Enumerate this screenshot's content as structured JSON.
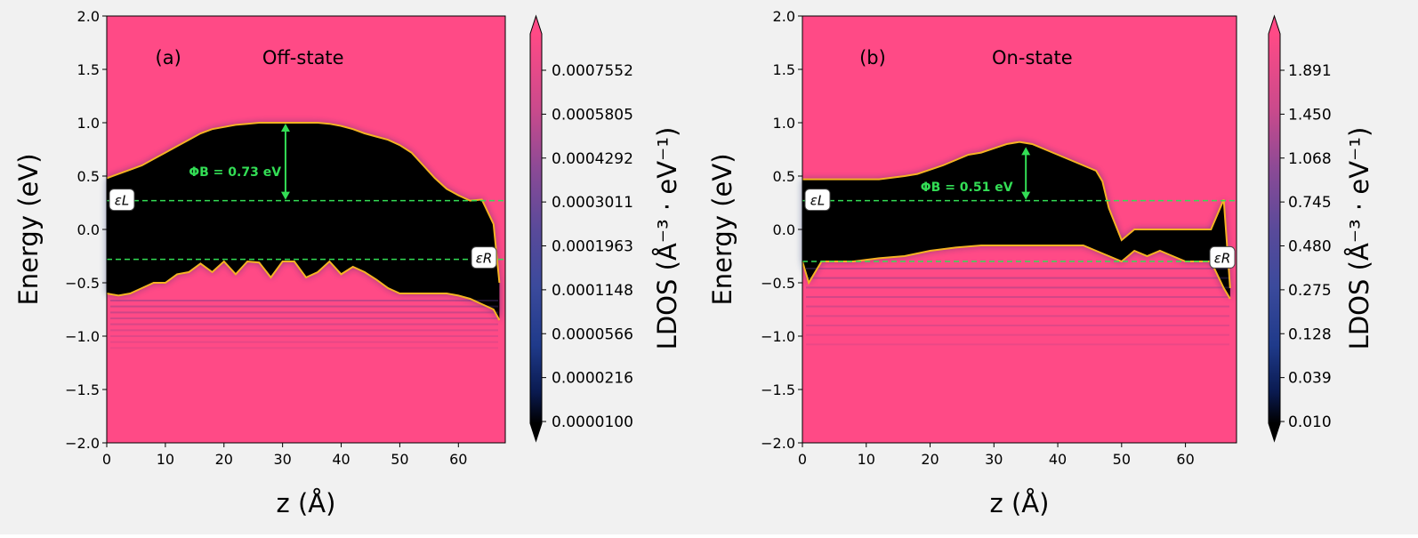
{
  "chart_data": [
    {
      "type": "heatmap",
      "panel_label": "(a)",
      "title": "Off-state",
      "xlabel": "z (Å)",
      "ylabel": "Energy (eV)",
      "xlim": [
        0,
        68
      ],
      "ylim": [
        -2.0,
        2.0
      ],
      "x_ticks": [
        "0",
        "10",
        "20",
        "30",
        "40",
        "50",
        "60"
      ],
      "y_ticks": [
        "2.0",
        "1.5",
        "1.0",
        "0.5",
        "0.0",
        "−0.5",
        "−1.0",
        "−1.5",
        "−2.0"
      ],
      "colorbar": {
        "label": "LDOS (Å⁻³ · eV⁻¹)",
        "scale": "log",
        "ticks": [
          "0.0007552",
          "0.0005805",
          "0.0004292",
          "0.0003011",
          "0.0001963",
          "0.0001148",
          "0.0000566",
          "0.0000216",
          "0.0000100"
        ]
      },
      "fermi_levels": {
        "epsilon_L": 0.27,
        "epsilon_R": -0.28
      },
      "epsilon_L_label": "εL",
      "epsilon_R_label": "εR",
      "barrier_annotation": "ΦB = 0.73 eV",
      "barrier_eV": 0.73,
      "conduction_band_edge": {
        "z": [
          0,
          2,
          4,
          6,
          8,
          10,
          12,
          14,
          16,
          18,
          20,
          22,
          24,
          26,
          28,
          30,
          32,
          34,
          36,
          38,
          40,
          42,
          44,
          46,
          48,
          50,
          52,
          54,
          56,
          58,
          60,
          62,
          64,
          66,
          67
        ],
        "E": [
          0.48,
          0.52,
          0.56,
          0.6,
          0.66,
          0.72,
          0.78,
          0.84,
          0.9,
          0.94,
          0.96,
          0.98,
          0.99,
          1.0,
          1.0,
          1.0,
          1.0,
          1.0,
          1.0,
          0.99,
          0.97,
          0.94,
          0.9,
          0.87,
          0.84,
          0.79,
          0.72,
          0.6,
          0.48,
          0.38,
          0.32,
          0.27,
          0.28,
          0.05,
          -0.5
        ]
      },
      "valence_band_edge": {
        "z": [
          0,
          2,
          4,
          6,
          8,
          10,
          12,
          14,
          16,
          18,
          20,
          22,
          24,
          26,
          28,
          30,
          32,
          34,
          36,
          38,
          40,
          42,
          44,
          46,
          48,
          50,
          52,
          54,
          56,
          58,
          60,
          62,
          64,
          66,
          67
        ],
        "E": [
          -0.6,
          -0.62,
          -0.6,
          -0.55,
          -0.5,
          -0.5,
          -0.42,
          -0.4,
          -0.32,
          -0.4,
          -0.3,
          -0.42,
          -0.3,
          -0.31,
          -0.45,
          -0.3,
          -0.3,
          -0.45,
          -0.4,
          -0.3,
          -0.42,
          -0.35,
          -0.4,
          -0.47,
          -0.55,
          -0.6,
          -0.6,
          -0.6,
          -0.6,
          -0.6,
          -0.62,
          -0.65,
          -0.7,
          -0.75,
          -0.85
        ]
      }
    },
    {
      "type": "heatmap",
      "panel_label": "(b)",
      "title": "On-state",
      "xlabel": "z (Å)",
      "ylabel": "Energy (eV)",
      "xlim": [
        0,
        68
      ],
      "ylim": [
        -2.0,
        2.0
      ],
      "x_ticks": [
        "0",
        "10",
        "20",
        "30",
        "40",
        "50",
        "60"
      ],
      "y_ticks": [
        "2.0",
        "1.5",
        "1.0",
        "0.5",
        "0.0",
        "−0.5",
        "−1.0",
        "−1.5",
        "−2.0"
      ],
      "colorbar": {
        "label": "LDOS (Å⁻³ · eV⁻¹)",
        "scale": "log",
        "ticks": [
          "1.891",
          "1.450",
          "1.068",
          "0.745",
          "0.480",
          "0.275",
          "0.128",
          "0.039",
          "0.010"
        ]
      },
      "fermi_levels": {
        "epsilon_L": 0.27,
        "epsilon_R": -0.3
      },
      "epsilon_L_label": "εL",
      "epsilon_R_label": "εR",
      "barrier_annotation": "ΦB = 0.51 eV",
      "barrier_eV": 0.51,
      "conduction_band_edge": {
        "z": [
          0,
          4,
          8,
          12,
          16,
          18,
          20,
          22,
          24,
          26,
          28,
          30,
          32,
          34,
          36,
          38,
          40,
          42,
          44,
          46,
          47,
          48,
          49,
          50,
          52,
          54,
          56,
          58,
          60,
          62,
          64,
          66,
          67
        ],
        "E": [
          0.47,
          0.47,
          0.47,
          0.47,
          0.5,
          0.52,
          0.56,
          0.6,
          0.65,
          0.7,
          0.72,
          0.76,
          0.8,
          0.82,
          0.8,
          0.75,
          0.7,
          0.65,
          0.6,
          0.55,
          0.45,
          0.2,
          0.05,
          -0.1,
          0.0,
          0.0,
          0.0,
          0.0,
          0.0,
          0.0,
          0.0,
          0.28,
          -0.55
        ]
      },
      "valence_band_edge": {
        "z": [
          0,
          1,
          3,
          5,
          8,
          12,
          16,
          20,
          24,
          28,
          32,
          36,
          40,
          44,
          46,
          48,
          50,
          52,
          54,
          56,
          58,
          60,
          62,
          64,
          66,
          67
        ],
        "E": [
          -0.3,
          -0.5,
          -0.3,
          -0.3,
          -0.3,
          -0.27,
          -0.25,
          -0.2,
          -0.17,
          -0.15,
          -0.15,
          -0.15,
          -0.15,
          -0.15,
          -0.2,
          -0.25,
          -0.3,
          -0.2,
          -0.25,
          -0.2,
          -0.25,
          -0.3,
          -0.3,
          -0.3,
          -0.55,
          -0.65
        ]
      }
    }
  ]
}
